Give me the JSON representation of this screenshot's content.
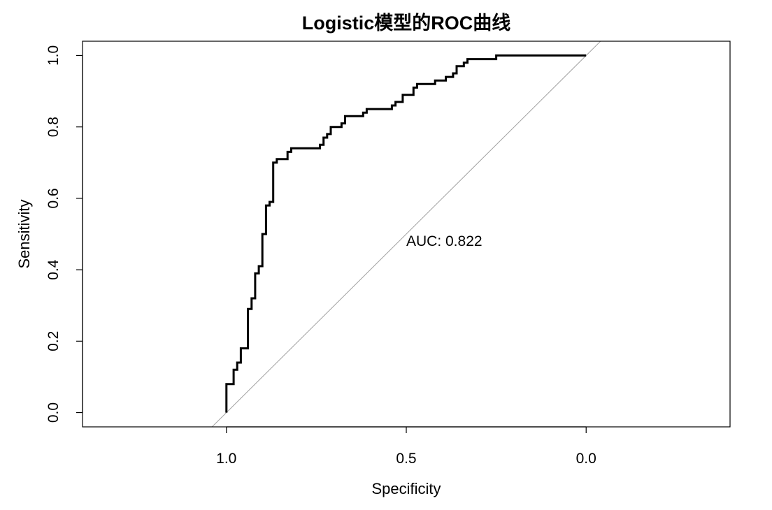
{
  "chart_data": {
    "type": "line",
    "title": "Logistic模型的ROC曲线",
    "xlabel": "Specificity",
    "ylabel": "Sensitivity",
    "x_reversed": true,
    "xlim": [
      1.4,
      -0.4
    ],
    "ylim": [
      -0.04,
      1.04
    ],
    "x_ticks": [
      1.0,
      0.5,
      0.0
    ],
    "x_tick_labels": [
      "1.0",
      "0.5",
      "0.0"
    ],
    "y_ticks": [
      0.0,
      0.2,
      0.4,
      0.6,
      0.8,
      1.0
    ],
    "y_tick_labels": [
      "0.0",
      "0.2",
      "0.4",
      "0.6",
      "0.8",
      "1.0"
    ],
    "grid": false,
    "annotation": {
      "text": "AUC: 0.822",
      "x": 0.5,
      "y": 0.48
    },
    "reference_line": {
      "from": [
        1.0,
        0.0
      ],
      "to": [
        0.0,
        1.0
      ],
      "color": "#a0a0a0"
    },
    "series": [
      {
        "color": "#000000",
        "points": [
          [
            1.0,
            0.0
          ],
          [
            1.0,
            0.08
          ],
          [
            0.98,
            0.08
          ],
          [
            0.98,
            0.12
          ],
          [
            0.97,
            0.12
          ],
          [
            0.97,
            0.14
          ],
          [
            0.96,
            0.14
          ],
          [
            0.96,
            0.18
          ],
          [
            0.94,
            0.18
          ],
          [
            0.94,
            0.29
          ],
          [
            0.93,
            0.29
          ],
          [
            0.93,
            0.32
          ],
          [
            0.92,
            0.32
          ],
          [
            0.92,
            0.39
          ],
          [
            0.91,
            0.39
          ],
          [
            0.91,
            0.41
          ],
          [
            0.9,
            0.41
          ],
          [
            0.9,
            0.5
          ],
          [
            0.89,
            0.5
          ],
          [
            0.89,
            0.58
          ],
          [
            0.88,
            0.58
          ],
          [
            0.88,
            0.59
          ],
          [
            0.87,
            0.59
          ],
          [
            0.87,
            0.7
          ],
          [
            0.86,
            0.7
          ],
          [
            0.86,
            0.71
          ],
          [
            0.83,
            0.71
          ],
          [
            0.83,
            0.73
          ],
          [
            0.82,
            0.73
          ],
          [
            0.82,
            0.74
          ],
          [
            0.74,
            0.74
          ],
          [
            0.74,
            0.75
          ],
          [
            0.73,
            0.75
          ],
          [
            0.73,
            0.77
          ],
          [
            0.72,
            0.77
          ],
          [
            0.72,
            0.78
          ],
          [
            0.71,
            0.78
          ],
          [
            0.71,
            0.8
          ],
          [
            0.68,
            0.8
          ],
          [
            0.68,
            0.81
          ],
          [
            0.67,
            0.81
          ],
          [
            0.67,
            0.83
          ],
          [
            0.62,
            0.83
          ],
          [
            0.62,
            0.84
          ],
          [
            0.61,
            0.84
          ],
          [
            0.61,
            0.85
          ],
          [
            0.54,
            0.85
          ],
          [
            0.54,
            0.86
          ],
          [
            0.53,
            0.86
          ],
          [
            0.53,
            0.87
          ],
          [
            0.51,
            0.87
          ],
          [
            0.51,
            0.89
          ],
          [
            0.48,
            0.89
          ],
          [
            0.48,
            0.91
          ],
          [
            0.47,
            0.91
          ],
          [
            0.47,
            0.92
          ],
          [
            0.42,
            0.92
          ],
          [
            0.42,
            0.93
          ],
          [
            0.39,
            0.93
          ],
          [
            0.39,
            0.94
          ],
          [
            0.37,
            0.94
          ],
          [
            0.37,
            0.95
          ],
          [
            0.36,
            0.95
          ],
          [
            0.36,
            0.97
          ],
          [
            0.34,
            0.97
          ],
          [
            0.34,
            0.98
          ],
          [
            0.33,
            0.98
          ],
          [
            0.33,
            0.99
          ],
          [
            0.25,
            0.99
          ],
          [
            0.25,
            1.0
          ],
          [
            0.0,
            1.0
          ]
        ]
      }
    ]
  }
}
